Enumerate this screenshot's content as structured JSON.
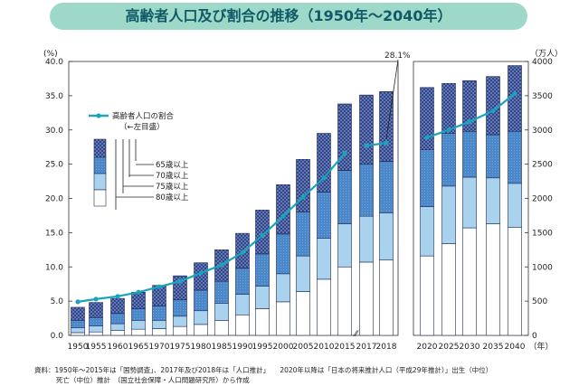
{
  "title": "高齢者人口及び割合の推移（1950年～2040年）",
  "chart_data": {
    "type": "bar",
    "stacked": true,
    "categories": [
      "1950",
      "1955",
      "1960",
      "1965",
      "1970",
      "1975",
      "1980",
      "1985",
      "1990",
      "1995",
      "2000",
      "2005",
      "2010",
      "2015",
      "2017",
      "2018",
      "2020",
      "2025",
      "2030",
      "2035",
      "2040"
    ],
    "x_unit": "（年）",
    "y_left": {
      "unit": "(%)",
      "ticks": [
        "0.0",
        "5.0",
        "10.0",
        "15.0",
        "20.0",
        "25.0",
        "30.0",
        "35.0",
        "40.0"
      ],
      "range": [
        0,
        40
      ]
    },
    "y_right": {
      "unit": "（万人）",
      "ticks": [
        "0",
        "500",
        "1000",
        "1500",
        "2000",
        "2500",
        "3000",
        "3500",
        "4000"
      ],
      "range": [
        0,
        4000
      ]
    },
    "series": [
      {
        "name": "80歳以上",
        "color": "#ffffff",
        "values": [
          40,
          50,
          70,
          90,
          100,
          130,
          160,
          220,
          300,
          390,
          490,
          640,
          820,
          1000,
          1070,
          1100,
          1160,
          1340,
          1570,
          1630,
          1580
        ]
      },
      {
        "name": "75歳以上",
        "color": "#a9d2ee",
        "values": [
          70,
          90,
          100,
          130,
          120,
          150,
          200,
          250,
          300,
          330,
          410,
          520,
          600,
          630,
          670,
          690,
          720,
          840,
          740,
          670,
          640
        ]
      },
      {
        "name": "70歳以上",
        "color": "#4a88c9",
        "values": [
          110,
          120,
          150,
          170,
          210,
          240,
          300,
          320,
          380,
          470,
          580,
          640,
          670,
          780,
          760,
          750,
          830,
          770,
          670,
          630,
          760
        ]
      },
      {
        "name": "65歳以上",
        "color": "#2b3a7a",
        "values": [
          190,
          220,
          220,
          240,
          300,
          350,
          400,
          460,
          510,
          640,
          720,
          770,
          860,
          970,
          1010,
          1020,
          910,
          730,
          740,
          850,
          960
        ]
      }
    ],
    "line": {
      "name": "高齢者人口の割合",
      "note": "（←左目盛）",
      "color": "#1aa3bf",
      "values": [
        4.9,
        5.3,
        5.7,
        6.3,
        7.1,
        7.9,
        9.1,
        10.3,
        12.1,
        14.6,
        17.4,
        20.2,
        23.0,
        26.6,
        27.7,
        28.1,
        28.9,
        30.0,
        31.2,
        32.8,
        35.3
      ],
      "annotation": "28.1%"
    },
    "legend_labels": [
      "65歳以上",
      "70歳以上",
      "75歳以上",
      "80歳以上"
    ]
  },
  "source": {
    "line1": "資料：1950年～2015年は「国勢調査」、2017年及び2018年は「人口推計」　　2020年以降は「日本の将来推計人口（平成29年推計）」出生（中位）",
    "line2": "死亡（中位）推計　（国立社会保障・人口問題研究所）から作成"
  }
}
